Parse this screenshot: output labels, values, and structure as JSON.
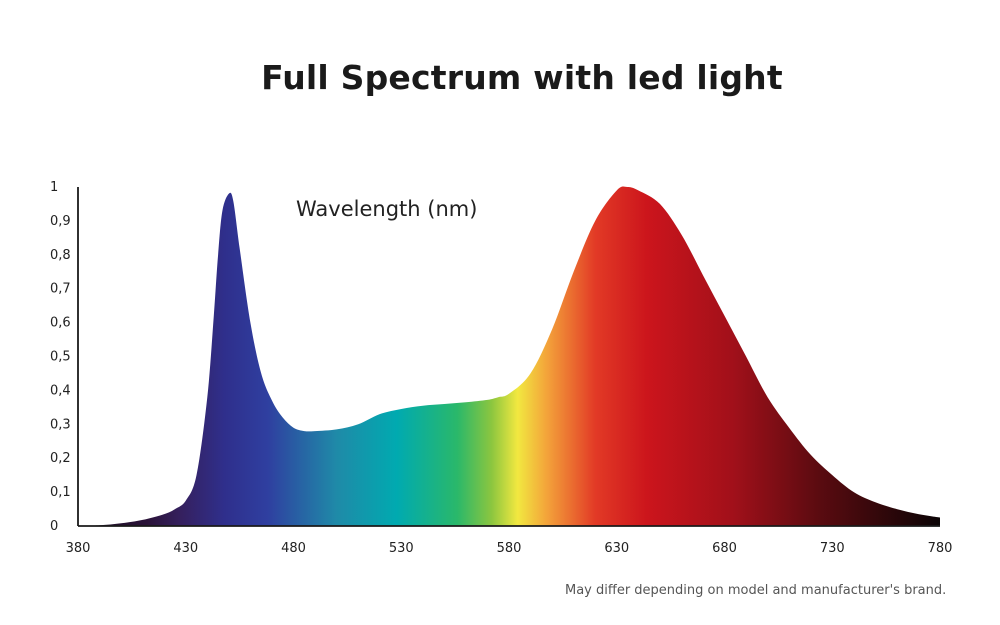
{
  "chart_data": {
    "type": "area",
    "title": "Full Spectrum with led light",
    "series_label": "Wavelength (nm)",
    "xlabel": "",
    "ylabel": "",
    "xlim": [
      380,
      780
    ],
    "ylim": [
      0,
      1
    ],
    "x_ticks": [
      "380",
      "430",
      "480",
      "530",
      "580",
      "630",
      "680",
      "730",
      "780"
    ],
    "y_ticks": [
      "0",
      "0,1",
      "0,2",
      "0,3",
      "0,4",
      "0,5",
      "0,6",
      "0,7",
      "0,8",
      "0,9",
      "1"
    ],
    "grid": false,
    "legend": "none",
    "x": [
      380,
      390,
      400,
      410,
      420,
      425,
      430,
      435,
      440,
      443,
      445,
      447,
      450,
      452,
      455,
      460,
      465,
      470,
      475,
      480,
      485,
      490,
      500,
      510,
      520,
      530,
      540,
      550,
      560,
      570,
      575,
      580,
      590,
      600,
      610,
      620,
      630,
      635,
      640,
      650,
      660,
      670,
      680,
      690,
      700,
      710,
      720,
      730,
      740,
      750,
      760,
      770,
      780
    ],
    "values": [
      0,
      0.002,
      0.008,
      0.018,
      0.035,
      0.05,
      0.075,
      0.15,
      0.38,
      0.62,
      0.8,
      0.93,
      0.98,
      0.96,
      0.82,
      0.6,
      0.45,
      0.37,
      0.32,
      0.29,
      0.28,
      0.28,
      0.285,
      0.3,
      0.33,
      0.345,
      0.355,
      0.36,
      0.365,
      0.372,
      0.38,
      0.39,
      0.45,
      0.58,
      0.75,
      0.9,
      0.99,
      1.0,
      0.99,
      0.95,
      0.86,
      0.74,
      0.62,
      0.5,
      0.38,
      0.29,
      0.21,
      0.15,
      0.1,
      0.07,
      0.05,
      0.035,
      0.025
    ]
  },
  "note": "May differ depending on model and manufacturer's brand."
}
